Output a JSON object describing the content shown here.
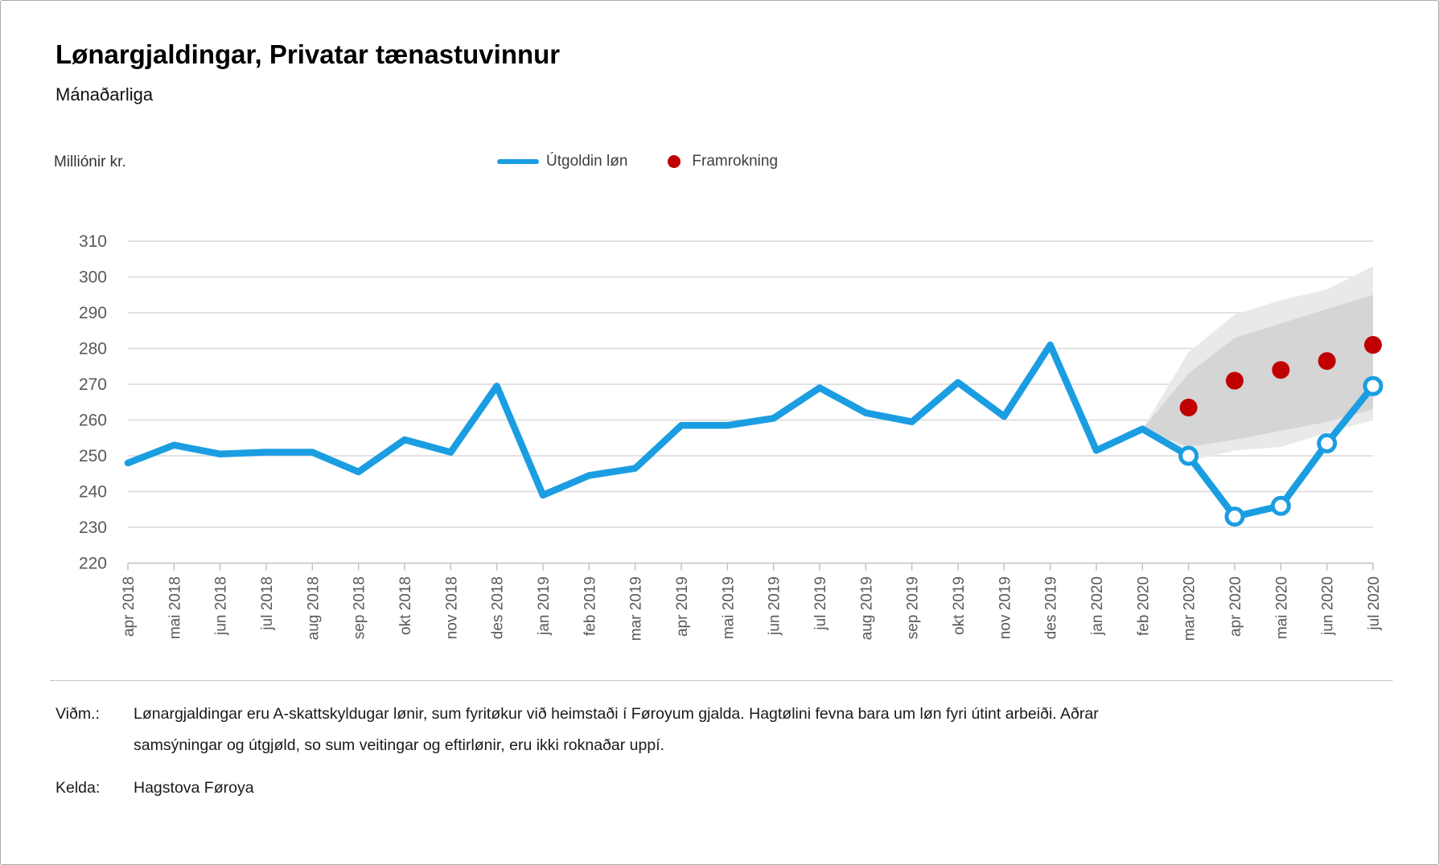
{
  "footer": {
    "note_label": "Viðm.:",
    "note_lines": [
      "Lønargjaldingar eru A-skattskyldugar lønir, sum fyritøkur við heimstaði í Føroyum gjalda. Hagtølini fevna bara um løn fyri útint arbeiði. Aðrar",
      "samsýningar og útgjøld, so sum veitingar og eftirlønir, eru ikki roknaðar uppí."
    ],
    "source_label": "Kelda:",
    "source_value": "Hagstova Føroya"
  },
  "colors": {
    "accent_blue": "#1B9DE2",
    "forecast_red": "#C00000",
    "band_outer": "#E9E9E9",
    "band_inner": "#D5D5D5",
    "gridline": "#D9D9D9",
    "axis": "#BFBFBF",
    "tick_label": "#595959"
  },
  "chart_data": {
    "type": "line",
    "title": "Lønargjaldingar, Privatar tænastuvinnur",
    "subtitle": "Mánaðarliga",
    "ylabel": "Milliónir kr.",
    "xlabel": "",
    "ylim": [
      220,
      310
    ],
    "yticks": [
      220,
      230,
      240,
      250,
      260,
      270,
      280,
      290,
      300,
      310
    ],
    "grid": "horizontal",
    "legend_position": "top",
    "categories": [
      "apr 2018",
      "mai 2018",
      "jun 2018",
      "jul 2018",
      "aug 2018",
      "sep 2018",
      "okt 2018",
      "nov 2018",
      "des 2018",
      "jan 2019",
      "feb 2019",
      "mar 2019",
      "apr 2019",
      "mai 2019",
      "jun 2019",
      "jul 2019",
      "aug 2019",
      "sep 2019",
      "okt 2019",
      "nov 2019",
      "des 2019",
      "jan 2020",
      "feb 2020",
      "mar 2020",
      "apr 2020",
      "mai 2020",
      "jun 2020",
      "jul 2020"
    ],
    "series": [
      {
        "name": "Útgoldin løn",
        "type": "line",
        "color": "#1B9DE2",
        "open_marker_start_index": 23,
        "values": [
          248,
          253,
          250.5,
          251,
          251,
          245.5,
          254.5,
          251,
          269.5,
          239,
          244.5,
          246.5,
          258.5,
          258.5,
          260.5,
          269,
          262,
          259.5,
          270.5,
          261,
          281,
          251.5,
          257.5,
          250,
          233,
          236,
          253.5,
          269.5
        ]
      },
      {
        "name": "Framrokning",
        "type": "scatter",
        "color": "#C00000",
        "start_category_index": 23,
        "values": [
          263.5,
          271,
          274,
          276.5,
          281
        ]
      }
    ],
    "forecast_bands": {
      "start_category_index": 22,
      "outer": {
        "upper": [
          257.5,
          279,
          289.5,
          293.5,
          296.5,
          303
        ],
        "lower": [
          257.5,
          248.5,
          251.5,
          252.5,
          256.5,
          260
        ]
      },
      "inner": {
        "upper": [
          257.5,
          273,
          283,
          287,
          291,
          295
        ],
        "lower": [
          257.5,
          252.5,
          254.5,
          257,
          259.5,
          263
        ]
      }
    }
  }
}
